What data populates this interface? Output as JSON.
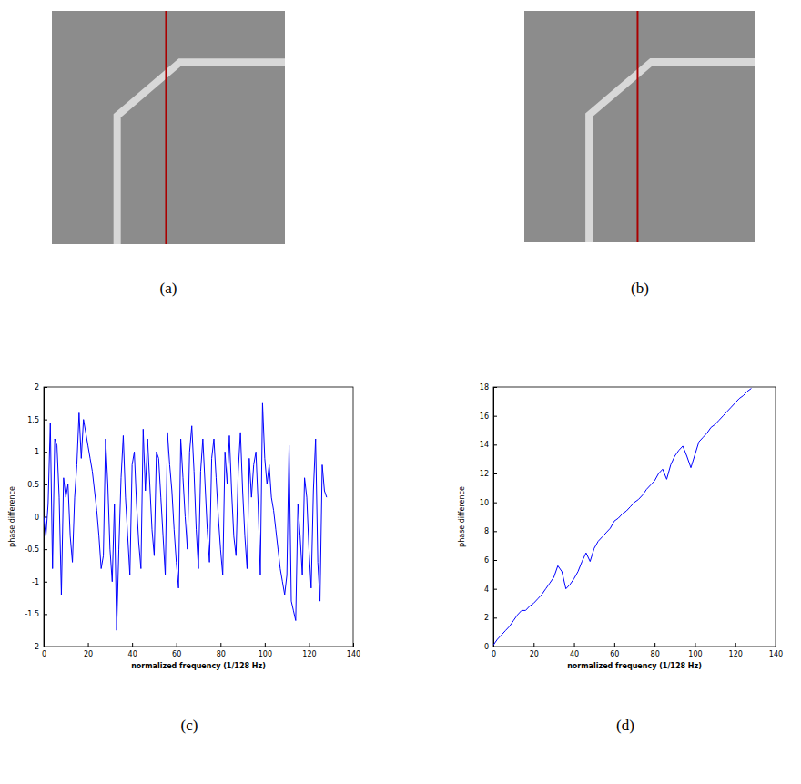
{
  "images": [
    {
      "panel": "(a)"
    },
    {
      "panel": "(b)"
    }
  ],
  "chart_data": [
    {
      "type": "line",
      "panel": "(c)",
      "x_label": "normalized frequency (1/128 Hz)",
      "y_label": "phase difference",
      "xlim": [
        0,
        140
      ],
      "xticks": [
        0,
        20,
        40,
        60,
        80,
        100,
        120,
        140
      ],
      "ylim": [
        -2,
        2
      ],
      "yticks": [
        -2,
        -1.5,
        -1,
        -0.5,
        0,
        0.5,
        1,
        1.5,
        2
      ],
      "grid": false,
      "x": [
        0,
        1,
        2,
        3,
        4,
        5,
        6,
        7,
        8,
        9,
        10,
        11,
        12,
        13,
        14,
        15,
        16,
        17,
        18,
        19,
        20,
        21,
        22,
        23,
        24,
        25,
        26,
        27,
        28,
        29,
        30,
        31,
        32,
        33,
        34,
        35,
        36,
        37,
        38,
        39,
        40,
        41,
        42,
        43,
        44,
        45,
        46,
        47,
        48,
        49,
        50,
        51,
        52,
        53,
        54,
        55,
        56,
        57,
        58,
        59,
        60,
        61,
        62,
        63,
        64,
        65,
        66,
        67,
        68,
        69,
        70,
        71,
        72,
        73,
        74,
        75,
        76,
        77,
        78,
        79,
        80,
        81,
        82,
        83,
        84,
        85,
        86,
        87,
        88,
        89,
        90,
        91,
        92,
        93,
        94,
        95,
        96,
        97,
        98,
        99,
        100,
        101,
        102,
        103,
        104,
        105,
        106,
        107,
        108,
        109,
        110,
        111,
        112,
        113,
        114,
        115,
        116,
        117,
        118,
        119,
        120,
        121,
        122,
        123,
        124,
        125,
        126,
        127,
        128
      ],
      "series": [
        {
          "color": "#0000ff",
          "values": [
            0,
            -0.3,
            0.2,
            1.45,
            -0.8,
            1.2,
            1.1,
            0.3,
            -1.2,
            0.6,
            0.3,
            0.5,
            -0.3,
            -0.7,
            0.3,
            0.8,
            1.6,
            0.9,
            1.5,
            1.3,
            1.1,
            0.9,
            0.7,
            0.4,
            0.1,
            -0.3,
            -0.8,
            -0.6,
            1.2,
            0.5,
            -0.5,
            -1.0,
            0.2,
            -1.75,
            -0.5,
            0.6,
            1.25,
            0.3,
            -0.3,
            -0.9,
            0.8,
            1.0,
            0.2,
            -0.4,
            -0.8,
            1.35,
            0.4,
            1.2,
            0.5,
            -0.2,
            -0.6,
            1.0,
            0.9,
            0.3,
            -0.3,
            -0.9,
            1.3,
            0.8,
            0.4,
            -0.2,
            -0.7,
            -1.1,
            1.2,
            0.6,
            0.0,
            -0.5,
            1.0,
            1.4,
            0.7,
            -0.2,
            -0.8,
            0.7,
            1.2,
            0.5,
            -0.2,
            -0.7,
            0.9,
            1.2,
            0.6,
            0.0,
            -0.5,
            -0.9,
            1.0,
            0.5,
            1.25,
            0.4,
            -0.3,
            -0.6,
            0.7,
            1.3,
            0.4,
            -0.3,
            -0.8,
            0.9,
            0.3,
            0.8,
            1.0,
            0.2,
            -0.9,
            1.75,
            0.9,
            0.5,
            0.8,
            0.3,
            0.1,
            -0.2,
            -0.5,
            -0.8,
            -1.0,
            -1.2,
            -0.9,
            1.1,
            -1.3,
            -1.45,
            -1.6,
            0.2,
            -0.3,
            -0.9,
            0.6,
            0.3,
            -0.5,
            -1.1,
            0.4,
            1.2,
            -0.7,
            -1.3,
            0.8,
            0.4,
            0.3
          ]
        }
      ]
    },
    {
      "type": "line",
      "panel": "(d)",
      "x_label": "normalized frequency (1/128 Hz)",
      "y_label": "phase difference",
      "xlim": [
        0,
        140
      ],
      "xticks": [
        0,
        20,
        40,
        60,
        80,
        100,
        120,
        140
      ],
      "ylim": [
        0,
        18
      ],
      "yticks": [
        0,
        2,
        4,
        6,
        8,
        10,
        12,
        14,
        16,
        18
      ],
      "grid": false,
      "x": [
        0,
        2,
        4,
        6,
        8,
        10,
        12,
        14,
        16,
        18,
        20,
        22,
        24,
        26,
        28,
        30,
        32,
        34,
        36,
        38,
        40,
        42,
        44,
        46,
        48,
        50,
        52,
        54,
        56,
        58,
        60,
        62,
        64,
        66,
        68,
        70,
        72,
        74,
        76,
        78,
        80,
        82,
        84,
        86,
        88,
        90,
        92,
        94,
        96,
        98,
        100,
        102,
        104,
        106,
        108,
        110,
        112,
        114,
        116,
        118,
        120,
        122,
        124,
        126,
        128
      ],
      "series": [
        {
          "color": "#0000ff",
          "values": [
            0.1,
            0.5,
            0.8,
            1.1,
            1.4,
            1.8,
            2.2,
            2.5,
            2.5,
            2.8,
            3.0,
            3.3,
            3.6,
            4.0,
            4.4,
            4.8,
            5.6,
            5.2,
            4.0,
            4.3,
            4.7,
            5.2,
            5.9,
            6.5,
            5.9,
            6.8,
            7.3,
            7.6,
            7.9,
            8.2,
            8.7,
            8.9,
            9.2,
            9.4,
            9.7,
            10.0,
            10.2,
            10.5,
            10.9,
            11.2,
            11.5,
            12.0,
            12.3,
            11.6,
            12.6,
            13.2,
            13.6,
            13.9,
            13.2,
            12.4,
            13.3,
            14.2,
            14.5,
            14.8,
            15.2,
            15.4,
            15.7,
            16.0,
            16.3,
            16.6,
            16.9,
            17.2,
            17.4,
            17.7,
            17.9
          ]
        }
      ]
    }
  ]
}
